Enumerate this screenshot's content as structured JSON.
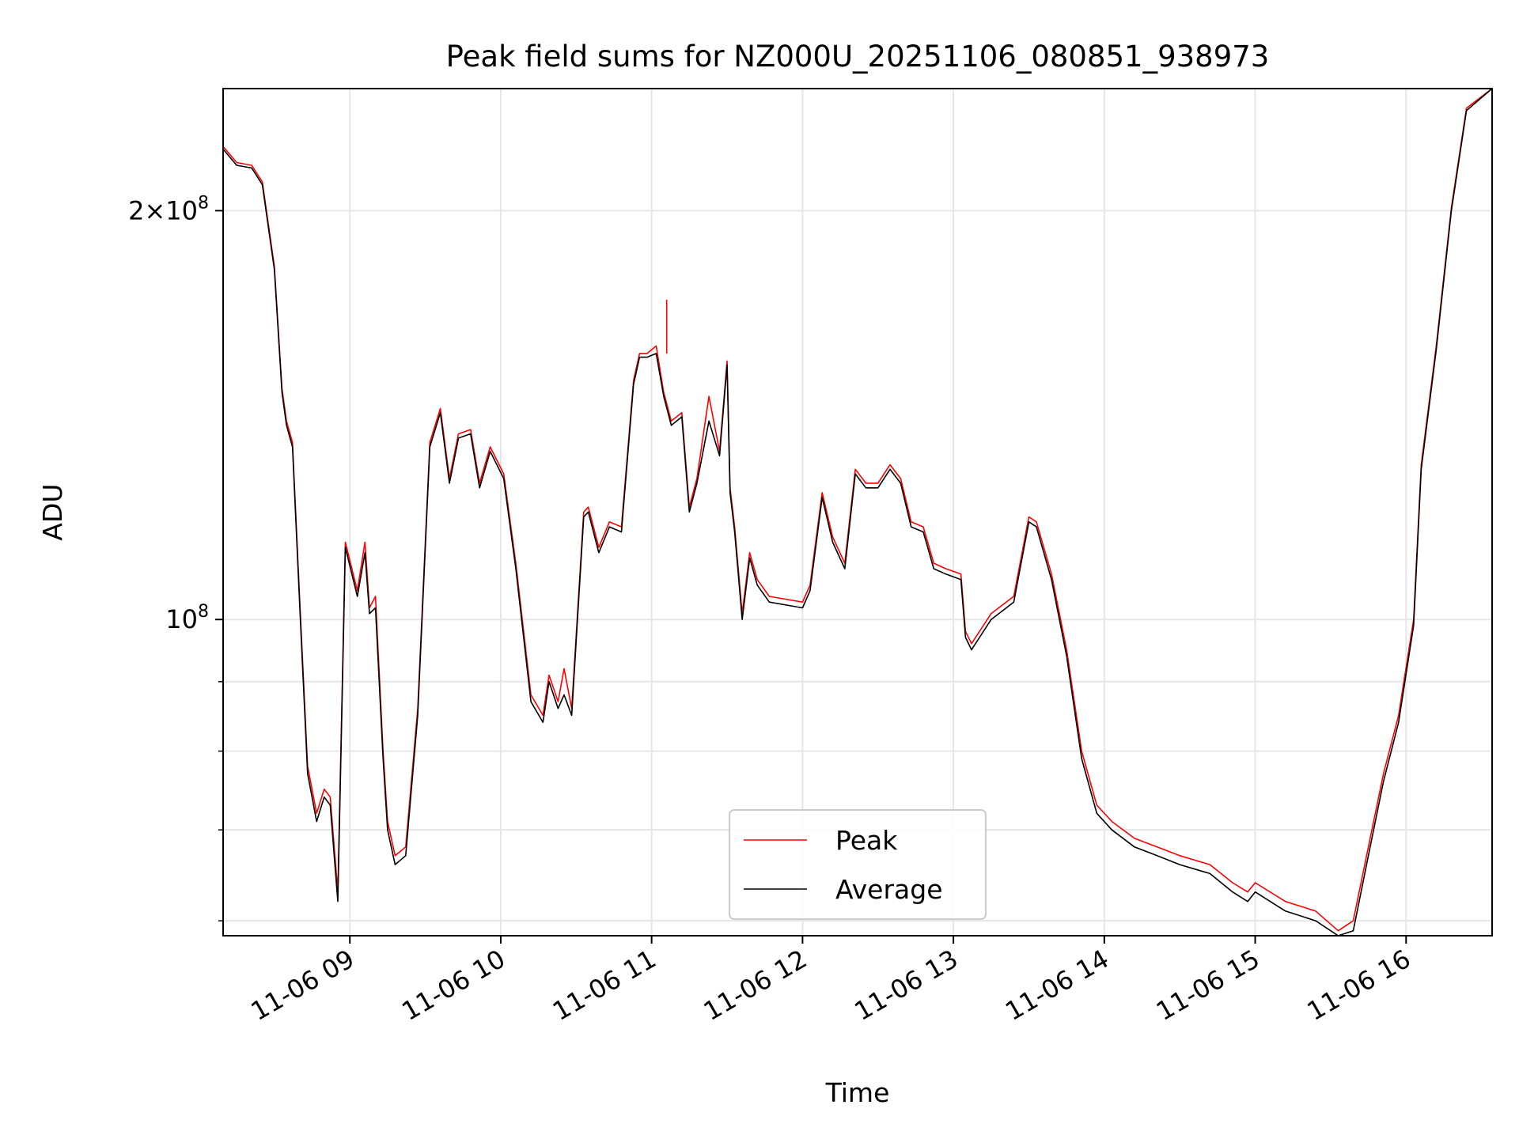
{
  "chart_data": {
    "type": "line",
    "title": "Peak field sums for NZ000U_20251106_080851_938973",
    "xlabel": "Time",
    "ylabel": "ADU",
    "yscale": "log",
    "xlim": [
      8.16,
      16.57
    ],
    "ylim": [
      58500000,
      246000000
    ],
    "grid": true,
    "legend_position": "lower center",
    "x_ticks": [
      {
        "value": 9,
        "label": "11-06 09"
      },
      {
        "value": 10,
        "label": "11-06 10"
      },
      {
        "value": 11,
        "label": "11-06 11"
      },
      {
        "value": 12,
        "label": "11-06 12"
      },
      {
        "value": 13,
        "label": "11-06 13"
      },
      {
        "value": 14,
        "label": "11-06 14"
      },
      {
        "value": 15,
        "label": "11-06 15"
      },
      {
        "value": 16,
        "label": "11-06 16"
      }
    ],
    "y_major_ticks": [
      {
        "value": 100000000,
        "base": "10",
        "exp": "8",
        "label": "10^8"
      },
      {
        "value": 200000000,
        "base": "2×10",
        "exp": "8",
        "label": "2×10^8"
      }
    ],
    "y_minor_ticks": [
      60000000,
      70000000,
      80000000,
      90000000
    ],
    "series": [
      {
        "name": "Peak",
        "color": "#ff0000",
        "x": [
          8.16,
          8.25,
          8.35,
          8.42,
          8.5,
          8.55,
          8.58,
          8.62,
          8.67,
          8.72,
          8.78,
          8.83,
          8.87,
          8.92,
          8.97,
          9.05,
          9.1,
          9.13,
          9.17,
          9.22,
          9.25,
          9.3,
          9.37,
          9.45,
          9.53,
          9.6,
          9.66,
          9.72,
          9.8,
          9.86,
          9.93,
          10.02,
          10.1,
          10.2,
          10.28,
          10.32,
          10.38,
          10.42,
          10.47,
          10.55,
          10.58,
          10.65,
          10.72,
          10.8,
          10.88,
          10.92,
          10.97,
          11.03,
          11.08,
          11.13,
          11.2,
          11.25,
          11.3,
          11.38,
          11.45,
          11.5,
          11.52,
          11.55,
          11.6,
          11.65,
          11.7,
          11.78,
          12.0,
          12.05,
          12.13,
          12.2,
          12.28,
          12.35,
          12.42,
          12.5,
          12.58,
          12.65,
          12.72,
          12.8,
          12.87,
          12.95,
          13.05,
          13.08,
          13.12,
          13.25,
          13.4,
          13.5,
          13.55,
          13.65,
          13.75,
          13.85,
          13.95,
          14.05,
          14.2,
          14.35,
          14.5,
          14.7,
          14.85,
          14.95,
          15.0,
          15.2,
          15.4,
          15.55,
          15.65,
          15.75,
          15.85,
          15.95,
          16.05,
          16.1,
          16.2,
          16.3,
          16.4,
          16.57
        ],
        "y": [
          223000000,
          217000000,
          216000000,
          210000000,
          182000000,
          148000000,
          140000000,
          135000000,
          102000000,
          78000000,
          72000000,
          75000000,
          74000000,
          63000000,
          114000000,
          105000000,
          114000000,
          102000000,
          104000000,
          80000000,
          71000000,
          67000000,
          68000000,
          86000000,
          135000000,
          143000000,
          127000000,
          137000000,
          138000000,
          126000000,
          134000000,
          128000000,
          110000000,
          88000000,
          85000000,
          91000000,
          87000000,
          92000000,
          86000000,
          120000000,
          121000000,
          113000000,
          118000000,
          117000000,
          150000000,
          157000000,
          157000000,
          159000000,
          147000000,
          140000000,
          142000000,
          121000000,
          127000000,
          146000000,
          133000000,
          155000000,
          125000000,
          117000000,
          101000000,
          112000000,
          107000000,
          104000000,
          103000000,
          106000000,
          124000000,
          115000000,
          110000000,
          129000000,
          126000000,
          126000000,
          130000000,
          127000000,
          118000000,
          117000000,
          110000000,
          109000000,
          108000000,
          98000000,
          96000000,
          101000000,
          104000000,
          119000000,
          118000000,
          108000000,
          95000000,
          80000000,
          73000000,
          71000000,
          69000000,
          68000000,
          67000000,
          66000000,
          64000000,
          63000000,
          64000000,
          62000000,
          61000000,
          59000000,
          60000000,
          68000000,
          77000000,
          85000000,
          100000000,
          130000000,
          159000000,
          201000000,
          238000000,
          246000000
        ]
      },
      {
        "name": "Average",
        "color": "#000000",
        "x": [
          8.16,
          8.25,
          8.35,
          8.42,
          8.5,
          8.55,
          8.58,
          8.62,
          8.67,
          8.72,
          8.78,
          8.83,
          8.87,
          8.92,
          8.97,
          9.05,
          9.1,
          9.13,
          9.17,
          9.22,
          9.25,
          9.3,
          9.37,
          9.45,
          9.53,
          9.6,
          9.66,
          9.72,
          9.8,
          9.86,
          9.93,
          10.02,
          10.1,
          10.2,
          10.28,
          10.32,
          10.38,
          10.42,
          10.47,
          10.55,
          10.58,
          10.65,
          10.72,
          10.8,
          10.88,
          10.92,
          10.97,
          11.03,
          11.08,
          11.13,
          11.2,
          11.25,
          11.3,
          11.38,
          11.45,
          11.5,
          11.52,
          11.55,
          11.6,
          11.65,
          11.7,
          11.78,
          12.0,
          12.05,
          12.13,
          12.2,
          12.28,
          12.35,
          12.42,
          12.5,
          12.58,
          12.65,
          12.72,
          12.8,
          12.87,
          12.95,
          13.05,
          13.08,
          13.12,
          13.25,
          13.4,
          13.5,
          13.55,
          13.65,
          13.75,
          13.85,
          13.95,
          14.05,
          14.2,
          14.35,
          14.5,
          14.7,
          14.85,
          14.95,
          15.0,
          15.2,
          15.4,
          15.55,
          15.65,
          15.75,
          15.85,
          15.95,
          16.05,
          16.1,
          16.2,
          16.3,
          16.4,
          16.57
        ],
        "y": [
          222000000,
          216000000,
          215000000,
          209000000,
          181000000,
          147000000,
          139000000,
          134000000,
          101000000,
          77000000,
          71000000,
          74000000,
          73000000,
          62000000,
          113000000,
          104000000,
          112000000,
          101000000,
          102000000,
          79000000,
          70000000,
          66000000,
          67000000,
          85000000,
          134000000,
          142000000,
          126000000,
          136000000,
          137000000,
          125000000,
          133000000,
          127000000,
          109000000,
          87000000,
          84000000,
          90000000,
          86000000,
          88000000,
          85000000,
          119000000,
          120000000,
          112000000,
          117000000,
          116000000,
          149000000,
          156000000,
          156000000,
          157000000,
          146000000,
          139000000,
          141000000,
          120000000,
          126000000,
          140000000,
          132000000,
          154000000,
          124000000,
          116000000,
          100000000,
          111000000,
          106000000,
          103000000,
          102000000,
          105000000,
          123000000,
          114000000,
          109000000,
          128000000,
          125000000,
          125000000,
          129000000,
          126000000,
          117000000,
          116000000,
          109000000,
          108000000,
          107000000,
          97000000,
          95000000,
          100000000,
          103000000,
          118000000,
          117000000,
          107000000,
          94000000,
          79000000,
          72000000,
          70000000,
          68000000,
          67000000,
          66000000,
          65000000,
          63000000,
          62000000,
          63000000,
          61000000,
          60000000,
          58500000,
          59000000,
          67000000,
          76000000,
          84000000,
          99000000,
          129000000,
          158000000,
          200000000,
          237000000,
          246000000
        ]
      }
    ],
    "annotations": [
      {
        "x": 11.1,
        "y": 172000000,
        "series": "Peak",
        "note": "spike"
      }
    ]
  }
}
